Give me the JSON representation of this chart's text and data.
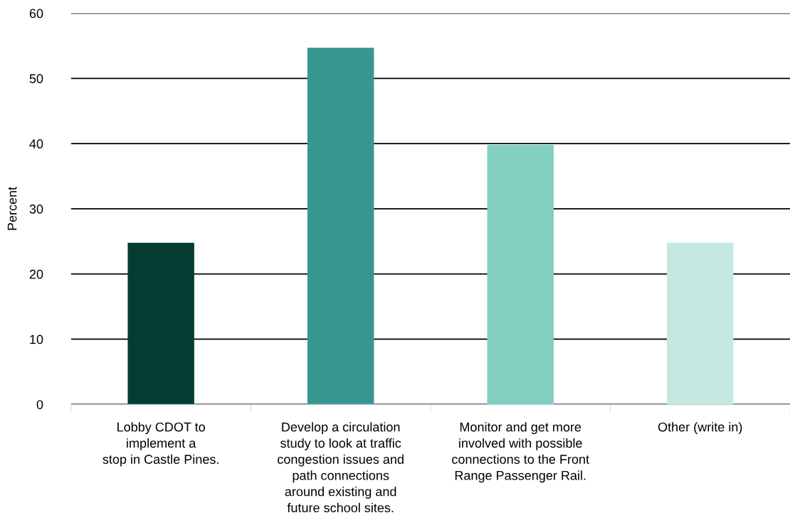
{
  "chart_data": {
    "type": "bar",
    "ylabel": "Percent",
    "categories": [
      "Lobby CDOT to\nimplement a\nstop in Castle Pines.",
      "Develop a circulation\nstudy to look at traffic\ncongestion issues and\npath connections\naround existing and\nfuture school sites.",
      "Monitor and get more\ninvolved with possible\nconnections to the Front\nRange Passenger Rail.",
      "Other (write in)"
    ],
    "values": [
      24.8,
      54.7,
      39.8,
      24.8
    ],
    "colors": [
      "#033d31",
      "#379690",
      "#80cfc0",
      "#c5e9e2"
    ],
    "ylim": [
      0,
      60
    ],
    "yticks": [
      0,
      10,
      20,
      30,
      40,
      50,
      60
    ],
    "grid": "y"
  }
}
